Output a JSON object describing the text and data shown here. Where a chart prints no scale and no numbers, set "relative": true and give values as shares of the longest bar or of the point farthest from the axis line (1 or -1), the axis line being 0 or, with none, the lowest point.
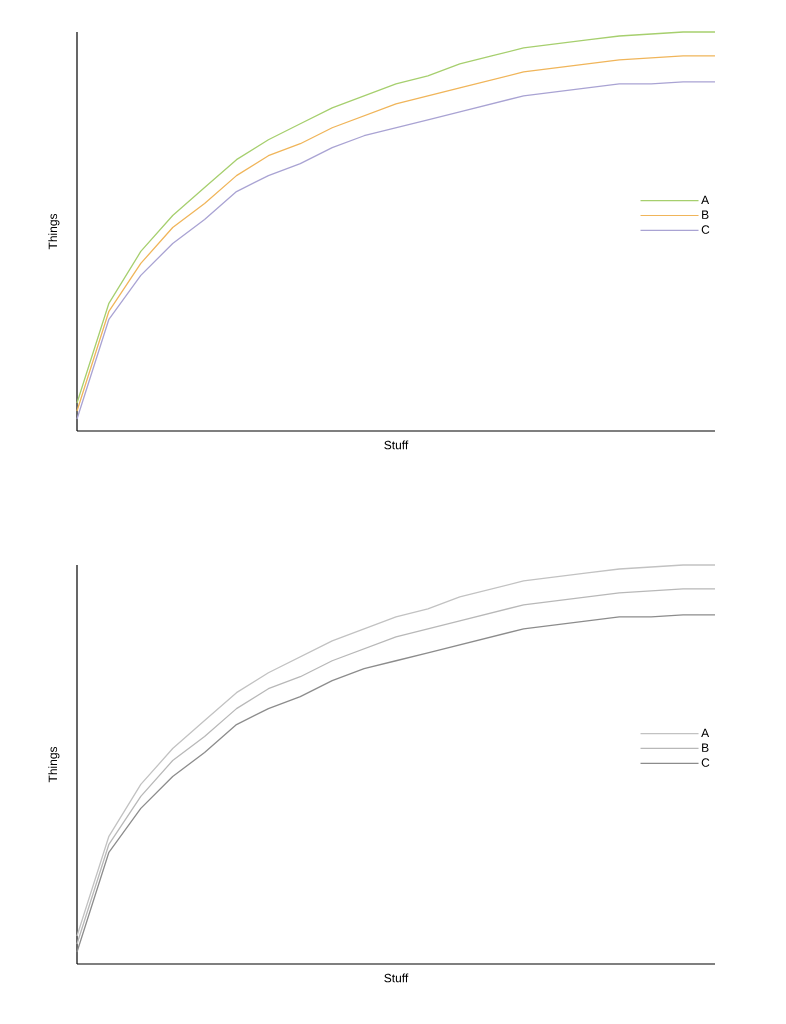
{
  "chart_data": [
    {
      "type": "line",
      "xlabel": "Stuff",
      "ylabel": "Things",
      "relative": true,
      "tick_labels": false,
      "legend": "right",
      "categories": [
        null,
        null,
        null,
        null,
        null,
        null,
        null,
        null,
        null,
        null,
        null,
        null,
        null,
        null,
        null,
        null,
        null,
        null,
        null,
        null,
        null
      ],
      "series": [
        {
          "name": "A",
          "color": "#a6cf6e",
          "values": [
            0.07,
            0.32,
            0.45,
            0.54,
            0.61,
            0.68,
            0.73,
            0.77,
            0.81,
            0.84,
            0.87,
            0.89,
            0.92,
            0.94,
            0.96,
            0.97,
            0.98,
            0.99,
            0.995,
            1.0,
            1.0
          ]
        },
        {
          "name": "B",
          "color": "#f0b55a",
          "values": [
            0.05,
            0.3,
            0.42,
            0.51,
            0.57,
            0.64,
            0.69,
            0.72,
            0.76,
            0.79,
            0.82,
            0.84,
            0.86,
            0.88,
            0.9,
            0.91,
            0.92,
            0.93,
            0.935,
            0.94,
            0.94
          ]
        },
        {
          "name": "C",
          "color": "#a9a3d3",
          "values": [
            0.03,
            0.28,
            0.39,
            0.47,
            0.53,
            0.6,
            0.64,
            0.67,
            0.71,
            0.74,
            0.76,
            0.78,
            0.8,
            0.82,
            0.84,
            0.85,
            0.86,
            0.87,
            0.87,
            0.875,
            0.875
          ]
        }
      ]
    },
    {
      "type": "line",
      "xlabel": "Stuff",
      "ylabel": "Things",
      "relative": true,
      "tick_labels": false,
      "legend": "right",
      "categories": [
        null,
        null,
        null,
        null,
        null,
        null,
        null,
        null,
        null,
        null,
        null,
        null,
        null,
        null,
        null,
        null,
        null,
        null,
        null,
        null,
        null
      ],
      "series": [
        {
          "name": "A",
          "color": "#c2c2c2",
          "values": [
            0.07,
            0.32,
            0.45,
            0.54,
            0.61,
            0.68,
            0.73,
            0.77,
            0.81,
            0.84,
            0.87,
            0.89,
            0.92,
            0.94,
            0.96,
            0.97,
            0.98,
            0.99,
            0.995,
            1.0,
            1.0
          ]
        },
        {
          "name": "B",
          "color": "#b8b8b8",
          "values": [
            0.05,
            0.3,
            0.42,
            0.51,
            0.57,
            0.64,
            0.69,
            0.72,
            0.76,
            0.79,
            0.82,
            0.84,
            0.86,
            0.88,
            0.9,
            0.91,
            0.92,
            0.93,
            0.935,
            0.94,
            0.94
          ]
        },
        {
          "name": "C",
          "color": "#8c8c8c",
          "values": [
            0.03,
            0.28,
            0.39,
            0.47,
            0.53,
            0.6,
            0.64,
            0.67,
            0.71,
            0.74,
            0.76,
            0.78,
            0.8,
            0.82,
            0.84,
            0.85,
            0.86,
            0.87,
            0.87,
            0.875,
            0.875
          ]
        }
      ]
    }
  ]
}
